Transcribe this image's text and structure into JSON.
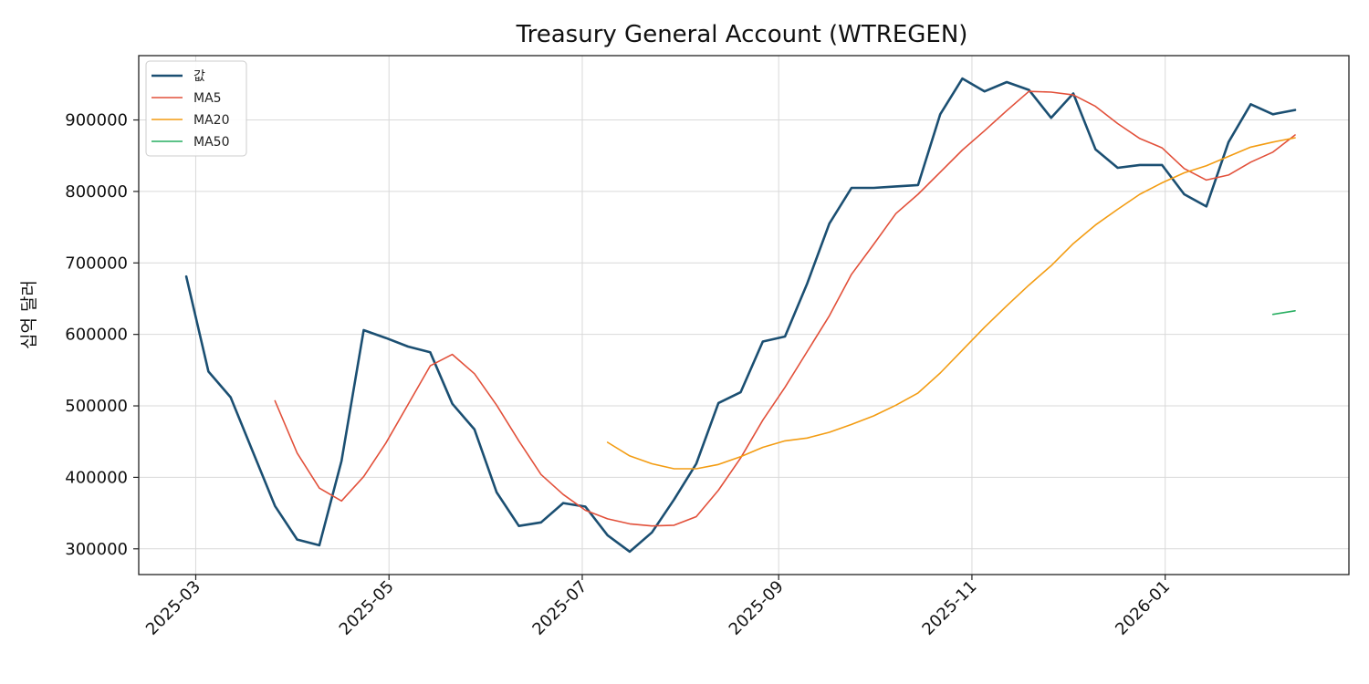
{
  "chart_data": {
    "type": "line",
    "title": "Treasury General Account (WTREGEN)",
    "ylabel": "십억 달러",
    "xlabel": "",
    "ylim": [
      264000,
      990000
    ],
    "xlim": [
      "2025-02-11",
      "2026-02-28"
    ],
    "yticks": [
      300000,
      400000,
      500000,
      600000,
      700000,
      800000,
      900000
    ],
    "ytick_labels": [
      "300000",
      "400000",
      "500000",
      "600000",
      "700000",
      "800000",
      "900000"
    ],
    "xticks": [
      "2025-03-01",
      "2025-05-01",
      "2025-07-01",
      "2025-09-01",
      "2025-11-01",
      "2026-01-01"
    ],
    "xtick_labels": [
      "2025-03",
      "2025-05",
      "2025-07",
      "2025-09",
      "2025-11",
      "2026-01"
    ],
    "grid": true,
    "legend_position": "top-left",
    "series": [
      {
        "name": "값",
        "color": "#1b4f72",
        "width": 2.6,
        "points": [
          [
            "2025-02-26",
            681000
          ],
          [
            "2025-03-05",
            548000
          ],
          [
            "2025-03-12",
            512000
          ],
          [
            "2025-03-19",
            436000
          ],
          [
            "2025-03-26",
            360000
          ],
          [
            "2025-04-02",
            313000
          ],
          [
            "2025-04-09",
            305000
          ],
          [
            "2025-04-16",
            423000
          ],
          [
            "2025-04-23",
            606000
          ],
          [
            "2025-04-30",
            595000
          ],
          [
            "2025-05-07",
            583000
          ],
          [
            "2025-05-14",
            575000
          ],
          [
            "2025-05-21",
            503000
          ],
          [
            "2025-05-28",
            467000
          ],
          [
            "2025-06-04",
            379000
          ],
          [
            "2025-06-11",
            332000
          ],
          [
            "2025-06-18",
            337000
          ],
          [
            "2025-06-25",
            364000
          ],
          [
            "2025-07-02",
            359000
          ],
          [
            "2025-07-09",
            319000
          ],
          [
            "2025-07-16",
            296000
          ],
          [
            "2025-07-23",
            323000
          ],
          [
            "2025-07-30",
            369000
          ],
          [
            "2025-08-06",
            419000
          ],
          [
            "2025-08-13",
            504000
          ],
          [
            "2025-08-20",
            519000
          ],
          [
            "2025-08-27",
            590000
          ],
          [
            "2025-09-03",
            597000
          ],
          [
            "2025-09-10",
            671000
          ],
          [
            "2025-09-17",
            755000
          ],
          [
            "2025-09-24",
            805000
          ],
          [
            "2025-10-01",
            805000
          ],
          [
            "2025-10-08",
            807000
          ],
          [
            "2025-10-15",
            809000
          ],
          [
            "2025-10-22",
            908000
          ],
          [
            "2025-10-29",
            958000
          ],
          [
            "2025-11-05",
            940000
          ],
          [
            "2025-11-12",
            953000
          ],
          [
            "2025-11-19",
            942000
          ],
          [
            "2025-11-26",
            903000
          ],
          [
            "2025-12-03",
            937000
          ],
          [
            "2025-12-10",
            859000
          ],
          [
            "2025-12-17",
            833000
          ],
          [
            "2025-12-24",
            837000
          ],
          [
            "2025-12-31",
            837000
          ],
          [
            "2026-01-07",
            796000
          ],
          [
            "2026-01-14",
            779000
          ],
          [
            "2026-01-21",
            869000
          ],
          [
            "2026-01-28",
            922000
          ],
          [
            "2026-02-04",
            908000
          ],
          [
            "2026-02-11",
            914000
          ]
        ]
      },
      {
        "name": "MA5",
        "color": "#e2503a",
        "width": 1.6,
        "points": [
          [
            "2025-03-26",
            507000
          ],
          [
            "2025-04-02",
            434000
          ],
          [
            "2025-04-09",
            385000
          ],
          [
            "2025-04-16",
            367000
          ],
          [
            "2025-04-23",
            401000
          ],
          [
            "2025-04-30",
            448000
          ],
          [
            "2025-05-07",
            502000
          ],
          [
            "2025-05-14",
            556000
          ],
          [
            "2025-05-21",
            572000
          ],
          [
            "2025-05-28",
            545000
          ],
          [
            "2025-06-04",
            501000
          ],
          [
            "2025-06-11",
            451000
          ],
          [
            "2025-06-18",
            404000
          ],
          [
            "2025-06-25",
            376000
          ],
          [
            "2025-07-02",
            354000
          ],
          [
            "2025-07-09",
            342000
          ],
          [
            "2025-07-16",
            335000
          ],
          [
            "2025-07-23",
            332000
          ],
          [
            "2025-07-30",
            333000
          ],
          [
            "2025-08-06",
            345000
          ],
          [
            "2025-08-13",
            382000
          ],
          [
            "2025-08-20",
            427000
          ],
          [
            "2025-08-27",
            480000
          ],
          [
            "2025-09-03",
            526000
          ],
          [
            "2025-09-10",
            576000
          ],
          [
            "2025-09-17",
            626000
          ],
          [
            "2025-09-24",
            684000
          ],
          [
            "2025-10-01",
            726000
          ],
          [
            "2025-10-08",
            769000
          ],
          [
            "2025-10-15",
            796000
          ],
          [
            "2025-10-22",
            827000
          ],
          [
            "2025-10-29",
            858000
          ],
          [
            "2025-11-05",
            885000
          ],
          [
            "2025-11-12",
            913000
          ],
          [
            "2025-11-19",
            940000
          ],
          [
            "2025-11-26",
            939000
          ],
          [
            "2025-12-03",
            935000
          ],
          [
            "2025-12-10",
            919000
          ],
          [
            "2025-12-17",
            895000
          ],
          [
            "2025-12-24",
            874000
          ],
          [
            "2025-12-31",
            861000
          ],
          [
            "2026-01-07",
            832000
          ],
          [
            "2026-01-14",
            816000
          ],
          [
            "2026-01-21",
            823000
          ],
          [
            "2026-01-28",
            841000
          ],
          [
            "2026-02-04",
            855000
          ],
          [
            "2026-02-11",
            879000
          ]
        ]
      },
      {
        "name": "MA20",
        "color": "#f39c12",
        "width": 1.6,
        "points": [
          [
            "2025-07-09",
            449000
          ],
          [
            "2025-07-16",
            430000
          ],
          [
            "2025-07-23",
            419000
          ],
          [
            "2025-07-30",
            412000
          ],
          [
            "2025-08-06",
            412000
          ],
          [
            "2025-08-13",
            418000
          ],
          [
            "2025-08-20",
            429000
          ],
          [
            "2025-08-27",
            442000
          ],
          [
            "2025-09-03",
            451000
          ],
          [
            "2025-09-10",
            455000
          ],
          [
            "2025-09-17",
            463000
          ],
          [
            "2025-09-24",
            474000
          ],
          [
            "2025-10-01",
            486000
          ],
          [
            "2025-10-08",
            501000
          ],
          [
            "2025-10-15",
            518000
          ],
          [
            "2025-10-22",
            546000
          ],
          [
            "2025-10-29",
            578000
          ],
          [
            "2025-11-05",
            610000
          ],
          [
            "2025-11-12",
            640000
          ],
          [
            "2025-11-19",
            669000
          ],
          [
            "2025-11-26",
            696000
          ],
          [
            "2025-12-03",
            727000
          ],
          [
            "2025-12-10",
            753000
          ],
          [
            "2025-12-17",
            775000
          ],
          [
            "2025-12-24",
            796000
          ],
          [
            "2025-12-31",
            812000
          ],
          [
            "2026-01-07",
            826000
          ],
          [
            "2026-01-14",
            836000
          ],
          [
            "2026-01-21",
            849000
          ],
          [
            "2026-01-28",
            862000
          ],
          [
            "2026-02-04",
            869000
          ],
          [
            "2026-02-11",
            875000
          ]
        ]
      },
      {
        "name": "MA50",
        "color": "#27ae60",
        "width": 1.6,
        "points": [
          [
            "2026-02-04",
            628000
          ],
          [
            "2026-02-11",
            633000
          ]
        ]
      }
    ]
  }
}
